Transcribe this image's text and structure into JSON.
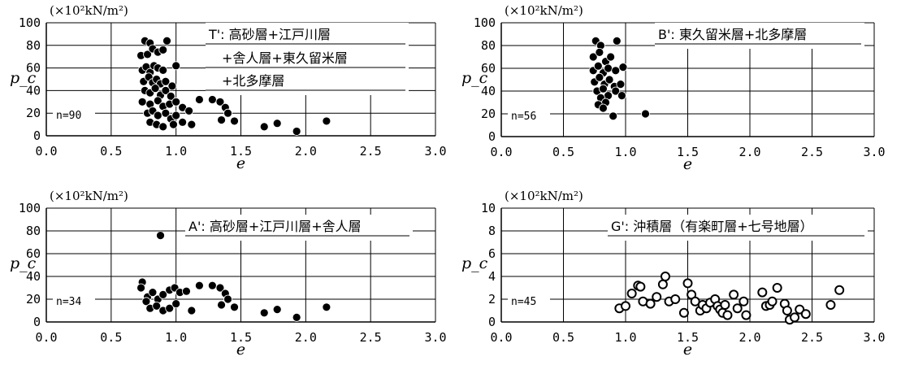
{
  "chart_data": [
    {
      "type": "scatter",
      "unit": "(×10²kN/m²)",
      "xlabel": "e",
      "ylabel": "p_c",
      "xlim": [
        0,
        3
      ],
      "ylim": [
        0,
        100
      ],
      "xticks": [
        "0.0",
        "0.5",
        "1.0",
        "1.5",
        "2.0",
        "2.5",
        "3.0"
      ],
      "yticks": [
        "0",
        "20",
        "40",
        "60",
        "80",
        "100"
      ],
      "annotation": [
        "T': 高砂層+江戸川層",
        "+舎人層+東久留米層",
        "+北多摩層"
      ],
      "n_label": "n=90",
      "marker": "filled",
      "points": [
        [
          0.76,
          84
        ],
        [
          0.8,
          82
        ],
        [
          0.93,
          84
        ],
        [
          0.73,
          71
        ],
        [
          0.78,
          72
        ],
        [
          0.82,
          77
        ],
        [
          0.86,
          74
        ],
        [
          0.9,
          76
        ],
        [
          0.74,
          58
        ],
        [
          0.77,
          61
        ],
        [
          0.8,
          56
        ],
        [
          0.83,
          62
        ],
        [
          0.86,
          60
        ],
        [
          0.9,
          58
        ],
        [
          1.0,
          62
        ],
        [
          0.75,
          48
        ],
        [
          0.79,
          52
        ],
        [
          0.82,
          47
        ],
        [
          0.85,
          50
        ],
        [
          0.88,
          46
        ],
        [
          0.92,
          48
        ],
        [
          0.97,
          44
        ],
        [
          0.76,
          40
        ],
        [
          0.8,
          38
        ],
        [
          0.84,
          42
        ],
        [
          0.88,
          36
        ],
        [
          0.92,
          40
        ],
        [
          0.96,
          35
        ],
        [
          0.74,
          30
        ],
        [
          0.8,
          28
        ],
        [
          0.86,
          31
        ],
        [
          0.9,
          26
        ],
        [
          0.95,
          28
        ],
        [
          1.0,
          30
        ],
        [
          1.05,
          25
        ],
        [
          1.1,
          22
        ],
        [
          1.18,
          32
        ],
        [
          0.78,
          20
        ],
        [
          0.82,
          22
        ],
        [
          0.86,
          18
        ],
        [
          0.92,
          20
        ],
        [
          0.96,
          15
        ],
        [
          1.0,
          18
        ],
        [
          1.05,
          12
        ],
        [
          0.8,
          12
        ],
        [
          0.85,
          10
        ],
        [
          0.9,
          8
        ],
        [
          0.98,
          10
        ],
        [
          1.12,
          10
        ],
        [
          1.28,
          32
        ],
        [
          1.34,
          30
        ],
        [
          1.38,
          25
        ],
        [
          1.4,
          20
        ],
        [
          1.35,
          14
        ],
        [
          1.45,
          13
        ],
        [
          1.68,
          8
        ],
        [
          1.78,
          11
        ],
        [
          1.93,
          4
        ],
        [
          2.16,
          13
        ]
      ]
    },
    {
      "type": "scatter",
      "unit": "(×10²kN/m²)",
      "xlabel": "e",
      "ylabel": "p_c",
      "xlim": [
        0,
        3
      ],
      "ylim": [
        0,
        100
      ],
      "xticks": [
        "0.0",
        "0.5",
        "1.0",
        "1.5",
        "2.0",
        "2.5",
        "3.0"
      ],
      "yticks": [
        "0",
        "20",
        "40",
        "60",
        "80",
        "100"
      ],
      "annotation": [
        "B': 東久留米層+北多摩層"
      ],
      "n_label": "n=56",
      "marker": "filled",
      "points": [
        [
          0.76,
          84
        ],
        [
          0.8,
          80
        ],
        [
          0.93,
          84
        ],
        [
          0.74,
          70
        ],
        [
          0.79,
          74
        ],
        [
          0.84,
          66
        ],
        [
          0.88,
          70
        ],
        [
          0.74,
          58
        ],
        [
          0.78,
          62
        ],
        [
          0.82,
          56
        ],
        [
          0.86,
          60
        ],
        [
          0.92,
          58
        ],
        [
          0.98,
          61
        ],
        [
          0.75,
          48
        ],
        [
          0.79,
          52
        ],
        [
          0.83,
          46
        ],
        [
          0.87,
          50
        ],
        [
          0.91,
          44
        ],
        [
          0.96,
          46
        ],
        [
          0.77,
          40
        ],
        [
          0.82,
          42
        ],
        [
          0.86,
          36
        ],
        [
          0.92,
          40
        ],
        [
          0.97,
          36
        ],
        [
          0.8,
          34
        ],
        [
          0.84,
          30
        ],
        [
          0.78,
          28
        ],
        [
          0.82,
          25
        ],
        [
          0.9,
          18
        ],
        [
          1.16,
          20
        ]
      ]
    },
    {
      "type": "scatter",
      "unit": "(×10²kN/m²)",
      "xlabel": "e",
      "ylabel": "p_c",
      "xlim": [
        0,
        3
      ],
      "ylim": [
        0,
        100
      ],
      "xticks": [
        "0.0",
        "0.5",
        "1.0",
        "1.5",
        "2.0",
        "2.5",
        "3.0"
      ],
      "yticks": [
        "0",
        "20",
        "40",
        "60",
        "80",
        "100"
      ],
      "annotation": [
        "A': 高砂層+江戸川層+舎人層"
      ],
      "n_label": "n=34",
      "marker": "filled",
      "points": [
        [
          0.88,
          76
        ],
        [
          0.74,
          35
        ],
        [
          0.73,
          30
        ],
        [
          0.78,
          22
        ],
        [
          0.82,
          26
        ],
        [
          0.86,
          20
        ],
        [
          0.9,
          24
        ],
        [
          0.95,
          28
        ],
        [
          0.99,
          30
        ],
        [
          1.03,
          26
        ],
        [
          1.08,
          27
        ],
        [
          1.18,
          32
        ],
        [
          0.77,
          18
        ],
        [
          0.8,
          12
        ],
        [
          0.85,
          14
        ],
        [
          0.9,
          10
        ],
        [
          0.95,
          12
        ],
        [
          1.0,
          16
        ],
        [
          1.12,
          10
        ],
        [
          1.28,
          32
        ],
        [
          1.34,
          30
        ],
        [
          1.38,
          25
        ],
        [
          1.4,
          20
        ],
        [
          1.35,
          15
        ],
        [
          1.45,
          13
        ],
        [
          1.68,
          8
        ],
        [
          1.78,
          11
        ],
        [
          1.93,
          4
        ],
        [
          2.16,
          13
        ]
      ]
    },
    {
      "type": "scatter",
      "unit": "(×10²kN/m²)",
      "xlabel": "e",
      "ylabel": "p_c",
      "xlim": [
        0,
        3
      ],
      "ylim": [
        0,
        10
      ],
      "xticks": [
        "0.0",
        "0.5",
        "1.0",
        "1.5",
        "2.0",
        "2.5",
        "3.0"
      ],
      "yticks": [
        "0",
        "2",
        "4",
        "6",
        "8",
        "10"
      ],
      "annotation": [
        "G': 沖積層（有楽町層+七号地層）"
      ],
      "n_label": "n=45",
      "marker": "open",
      "points": [
        [
          0.95,
          1.2
        ],
        [
          1.0,
          1.4
        ],
        [
          1.05,
          2.5
        ],
        [
          1.1,
          3.2
        ],
        [
          1.12,
          3.1
        ],
        [
          1.14,
          1.8
        ],
        [
          1.2,
          1.6
        ],
        [
          1.25,
          2.2
        ],
        [
          1.3,
          3.3
        ],
        [
          1.32,
          4.0
        ],
        [
          1.35,
          1.8
        ],
        [
          1.4,
          2.0
        ],
        [
          1.47,
          0.8
        ],
        [
          1.5,
          3.4
        ],
        [
          1.53,
          2.4
        ],
        [
          1.56,
          1.8
        ],
        [
          1.6,
          1.0
        ],
        [
          1.62,
          1.5
        ],
        [
          1.65,
          1.2
        ],
        [
          1.68,
          1.7
        ],
        [
          1.72,
          2.0
        ],
        [
          1.74,
          1.4
        ],
        [
          1.76,
          1.1
        ],
        [
          1.78,
          0.8
        ],
        [
          1.8,
          1.5
        ],
        [
          1.82,
          0.6
        ],
        [
          1.87,
          2.4
        ],
        [
          1.9,
          1.2
        ],
        [
          1.95,
          1.8
        ],
        [
          1.97,
          0.6
        ],
        [
          2.1,
          2.6
        ],
        [
          2.13,
          1.4
        ],
        [
          2.16,
          1.5
        ],
        [
          2.18,
          1.8
        ],
        [
          2.22,
          3.0
        ],
        [
          2.28,
          1.6
        ],
        [
          2.3,
          1.0
        ],
        [
          2.32,
          0.2
        ],
        [
          2.36,
          0.4
        ],
        [
          2.4,
          1.1
        ],
        [
          2.45,
          0.7
        ],
        [
          2.65,
          1.5
        ],
        [
          2.72,
          2.8
        ]
      ]
    }
  ]
}
